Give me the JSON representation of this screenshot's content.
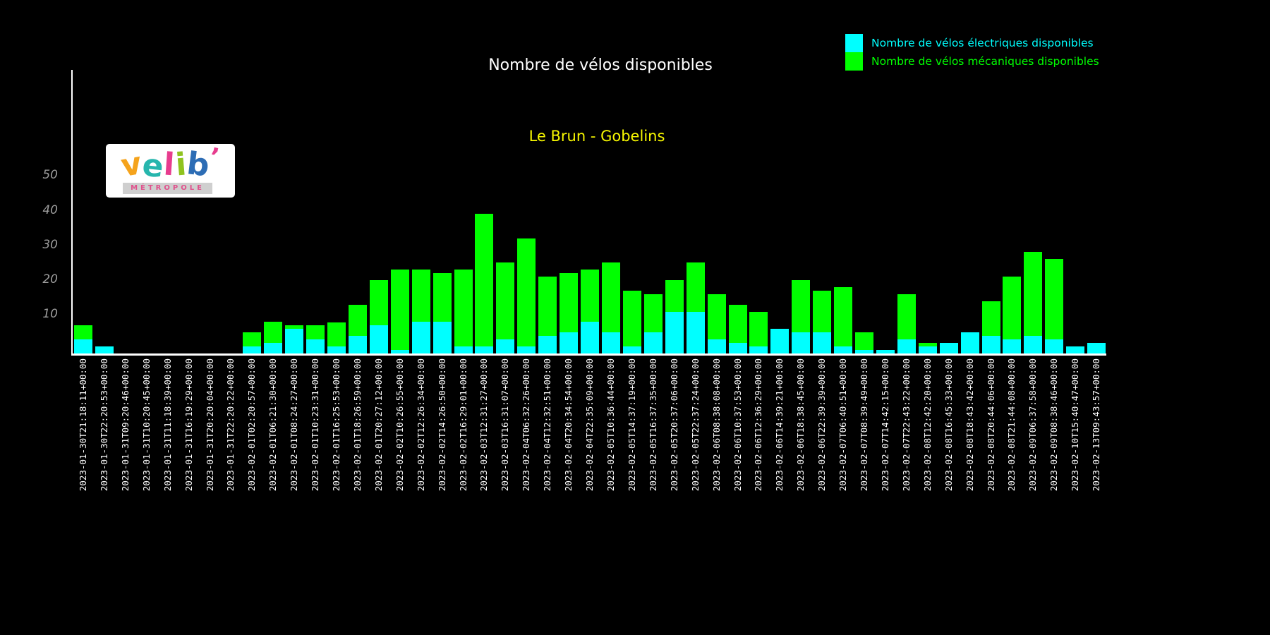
{
  "page": {
    "background": "#000000"
  },
  "header": {
    "title": "Nombre de vélos disponibles",
    "subtitle": "Le Brun - Gobelins",
    "title_color": "#ffffff",
    "subtitle_color": "#f8f800"
  },
  "logo": {
    "letters": [
      {
        "char": "v",
        "color": "#f5a31c"
      },
      {
        "char": "e",
        "color": "#27b6ad"
      },
      {
        "char": "l",
        "color": "#e73c8e"
      },
      {
        "char": "i",
        "color": "#8fc31f"
      },
      {
        "char": "b",
        "color": "#2d6db5"
      },
      {
        "char": "’",
        "color": "#e73c8e"
      }
    ],
    "tagline": "MÉTROPOLE",
    "tagline_color": "#e0508c",
    "strip_color": "#cfcfcf"
  },
  "legend": {
    "items": [
      {
        "label": "Nombre de vélos électriques disponibles",
        "color": "#00ffff"
      },
      {
        "label": "Nombre de vélos mécaniques disponibles",
        "color": "#00ff00"
      }
    ]
  },
  "chart_data": {
    "type": "bar",
    "stacked": true,
    "title": "Nombre de vélos disponibles",
    "subtitle": "Le Brun - Gobelins",
    "xlabel": "",
    "ylabel": "",
    "ylim": [
      0,
      55
    ],
    "yticks": [
      10,
      20,
      30,
      40,
      50
    ],
    "grid": false,
    "legend_position": "top-right",
    "background": "#000000",
    "categories": [
      "2023-01-30T21:18:11+00:00",
      "2023-01-30T22:20:53+00:00",
      "2023-01-31T09:20:46+00:00",
      "2023-01-31T10:20:45+00:00",
      "2023-01-31T11:18:39+00:00",
      "2023-01-31T16:19:29+00:00",
      "2023-01-31T20:20:04+00:00",
      "2023-01-31T22:20:22+00:00",
      "2023-02-01T02:20:57+00:00",
      "2023-02-01T06:21:30+00:00",
      "2023-02-01T08:24:27+00:00",
      "2023-02-01T10:23:31+00:00",
      "2023-02-01T16:25:53+00:00",
      "2023-02-01T18:26:59+00:00",
      "2023-02-01T20:27:12+00:00",
      "2023-02-02T10:26:55+00:00",
      "2023-02-02T12:26:34+00:00",
      "2023-02-02T14:26:50+00:00",
      "2023-02-02T16:29:01+00:00",
      "2023-02-03T12:31:27+00:00",
      "2023-02-03T16:31:07+00:00",
      "2023-02-04T06:32:26+00:00",
      "2023-02-04T12:32:51+00:00",
      "2023-02-04T20:34:54+00:00",
      "2023-02-04T22:35:09+00:00",
      "2023-02-05T10:36:44+00:00",
      "2023-02-05T14:37:19+00:00",
      "2023-02-05T16:37:35+00:00",
      "2023-02-05T20:37:06+00:00",
      "2023-02-05T22:37:24+00:00",
      "2023-02-06T08:38:08+00:00",
      "2023-02-06T10:37:53+00:00",
      "2023-02-06T12:36:29+00:00",
      "2023-02-06T14:39:21+00:00",
      "2023-02-06T18:38:45+00:00",
      "2023-02-06T22:39:39+00:00",
      "2023-02-07T06:40:51+00:00",
      "2023-02-07T08:39:49+00:00",
      "2023-02-07T14:42:15+00:00",
      "2023-02-07T22:43:22+00:00",
      "2023-02-08T12:42:20+00:00",
      "2023-02-08T16:45:33+00:00",
      "2023-02-08T18:43:42+00:00",
      "2023-02-08T20:44:06+00:00",
      "2023-02-08T21:44:08+00:00",
      "2023-02-09T06:37:58+00:00",
      "2023-02-09T08:38:46+00:00",
      "2023-02-10T15:40:47+00:00",
      "2023-02-13T09:43:57+00:00"
    ],
    "series": [
      {
        "name": "Nombre de vélos électriques disponibles",
        "color": "#00ffff",
        "values": [
          4,
          2,
          0,
          0,
          0,
          0,
          0,
          0,
          2,
          3,
          7,
          4,
          2,
          5,
          8,
          1,
          9,
          9,
          2,
          2,
          4,
          2,
          5,
          6,
          9,
          6,
          2,
          6,
          12,
          12,
          4,
          3,
          2,
          7,
          6,
          6,
          2,
          1,
          1,
          4,
          2,
          3,
          6,
          5,
          4,
          5,
          4,
          2,
          3
        ]
      },
      {
        "name": "Nombre de vélos mécaniques disponibles",
        "color": "#00ff00",
        "values": [
          4,
          0,
          0,
          0,
          0,
          0,
          0,
          0,
          4,
          6,
          1,
          4,
          7,
          9,
          13,
          23,
          15,
          14,
          22,
          38,
          22,
          31,
          17,
          17,
          15,
          20,
          16,
          11,
          9,
          14,
          13,
          11,
          10,
          0,
          15,
          12,
          17,
          5,
          0,
          13,
          1,
          0,
          0,
          10,
          18,
          24,
          23,
          0,
          0
        ]
      }
    ]
  }
}
